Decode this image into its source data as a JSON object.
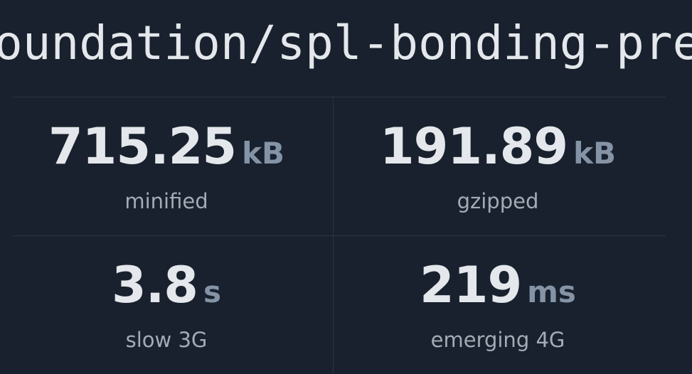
{
  "header": {
    "title": "oundation/spl-bonding-pre"
  },
  "stats": [
    {
      "value": "715.25",
      "unit": "kB",
      "label": "minified"
    },
    {
      "value": "191.89",
      "unit": "kB",
      "label": "gzipped"
    },
    {
      "value": "3.8",
      "unit": "s",
      "label": "slow 3G"
    },
    {
      "value": "219",
      "unit": "ms",
      "label": "emerging 4G"
    }
  ]
}
